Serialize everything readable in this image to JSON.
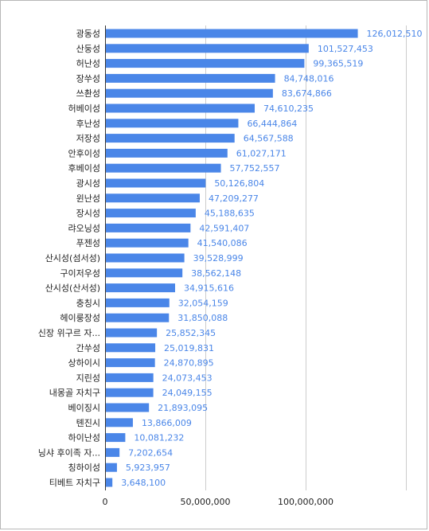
{
  "chart_data": {
    "type": "bar",
    "orientation": "horizontal",
    "title": "",
    "xlabel": "",
    "ylabel": "",
    "series_color": "#4a86e8",
    "xlim": [
      0,
      150000000
    ],
    "x_ticks": [
      "0",
      "50,000,000",
      "100,000,000"
    ],
    "x_tick_values": [
      0,
      50000000,
      100000000
    ],
    "grid": true,
    "legend": "none",
    "categories": [
      "광동성",
      "산둥성",
      "허난성",
      "장쑤성",
      "쓰촨성",
      "허베이성",
      "후난성",
      "저장성",
      "안후이성",
      "후베이성",
      "광시성",
      "윈난성",
      "장시성",
      "랴오닝성",
      "푸젠성",
      "산시성(섬서성)",
      "구이저우성",
      "산시성(산서성)",
      "충칭시",
      "헤이룽장성",
      "신장 위구르 자...",
      "간쑤성",
      "상하이시",
      "지린성",
      "내몽골 자치구",
      "베이징시",
      "톈진시",
      "하이난성",
      "닝샤 후이족 자...",
      "칭하이성",
      "티베트 자치구"
    ],
    "values": [
      126012510,
      101527453,
      99365519,
      84748016,
      83674866,
      74610235,
      66444864,
      64567588,
      61027171,
      57752557,
      50126804,
      47209277,
      45188635,
      42591407,
      41540086,
      39528999,
      38562148,
      34915616,
      32054159,
      31850088,
      25852345,
      25019831,
      24870895,
      24073453,
      24049155,
      21893095,
      13866009,
      10081232,
      7202654,
      5923957,
      3648100
    ],
    "value_labels": [
      "126,012,510",
      "101,527,453",
      "99,365,519",
      "84,748,016",
      "83,674,866",
      "74,610,235",
      "66,444,864",
      "64,567,588",
      "61,027,171",
      "57,752,557",
      "50,126,804",
      "47,209,277",
      "45,188,635",
      "42,591,407",
      "41,540,086",
      "39,528,999",
      "38,562,148",
      "34,915,616",
      "32,054,159",
      "31,850,088",
      "25,852,345",
      "25,019,831",
      "24,870,895",
      "24,073,453",
      "24,049,155",
      "21,893,095",
      "13,866,009",
      "10,081,232",
      "7,202,654",
      "5,923,957",
      "3,648,100"
    ]
  }
}
